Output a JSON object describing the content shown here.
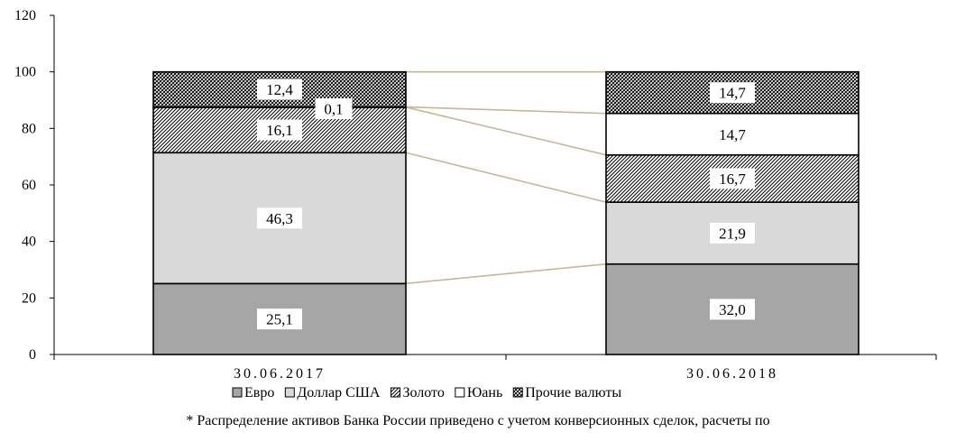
{
  "chart_data": {
    "type": "bar",
    "stacked": true,
    "categories": [
      "30.06.2017",
      "30.06.2018"
    ],
    "series": [
      {
        "name": "Евро",
        "values": [
          25.1,
          32.0
        ],
        "labels": [
          "25,1",
          "32,0"
        ],
        "fill": "#a6a6a6",
        "pattern": "solid"
      },
      {
        "name": "Доллар США",
        "values": [
          46.3,
          21.9
        ],
        "labels": [
          "46,3",
          "21,9"
        ],
        "fill": "#d9d9d9",
        "pattern": "solid"
      },
      {
        "name": "Золото",
        "values": [
          16.1,
          16.7
        ],
        "labels": [
          "16,1",
          "16,7"
        ],
        "fill": "#ffffff",
        "pattern": "hatch"
      },
      {
        "name": "Юань",
        "values": [
          0.1,
          14.7
        ],
        "labels": [
          "0,1",
          "14,7"
        ],
        "fill": "#ffffff",
        "pattern": "solid"
      },
      {
        "name": "Прочие валюты",
        "values": [
          12.4,
          14.7
        ],
        "labels": [
          "12,4",
          "14,7"
        ],
        "fill": "#ffffff",
        "pattern": "crosshatch"
      }
    ],
    "ylim": [
      0,
      120
    ],
    "yticks": [
      0,
      20,
      40,
      60,
      80,
      100,
      120
    ],
    "connector_color": "#c4b896",
    "legend_position": "bottom",
    "grid": false,
    "title": "",
    "xlabel": "",
    "ylabel": ""
  },
  "footnote": "* Распределение активов Банка России приведено с учетом конверсионных сделок, расчеты по"
}
